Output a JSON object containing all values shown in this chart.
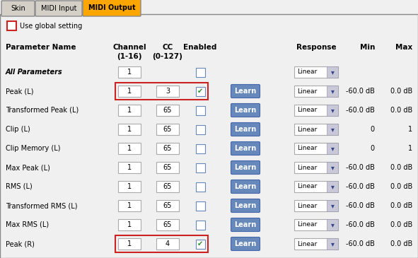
{
  "bg_color": "#f0f0f0",
  "tab_labels": [
    "Skin",
    "MIDI Input",
    "MIDI Output"
  ],
  "active_tab": 2,
  "active_tab_color": "#ffa500",
  "inactive_tab_color": "#d4d0c8",
  "use_global_setting_text": "Use global setting",
  "headers": [
    "Parameter Name",
    "Channel\n(1-16)",
    "CC\n(0-127)",
    "Enabled",
    "Response",
    "Min",
    "Max"
  ],
  "rows": [
    {
      "name": "All Parameters",
      "channel": "1",
      "cc": "",
      "enabled": false,
      "learn": false,
      "response": "Linear",
      "min_val": "",
      "max_val": "",
      "bold": true,
      "italic": true,
      "highlight": false
    },
    {
      "name": "Peak (L)",
      "channel": "1",
      "cc": "3",
      "enabled": true,
      "learn": true,
      "response": "Linear",
      "min_val": "-60.0 dB",
      "max_val": "0.0 dB",
      "bold": false,
      "italic": false,
      "highlight": true
    },
    {
      "name": "Transformed Peak (L)",
      "channel": "1",
      "cc": "65",
      "enabled": false,
      "learn": true,
      "response": "Linear",
      "min_val": "-60.0 dB",
      "max_val": "0.0 dB",
      "bold": false,
      "italic": false,
      "highlight": false
    },
    {
      "name": "Clip (L)",
      "channel": "1",
      "cc": "65",
      "enabled": false,
      "learn": true,
      "response": "Linear",
      "min_val": "0",
      "max_val": "1",
      "bold": false,
      "italic": false,
      "highlight": false
    },
    {
      "name": "Clip Memory (L)",
      "channel": "1",
      "cc": "65",
      "enabled": false,
      "learn": true,
      "response": "Linear",
      "min_val": "0",
      "max_val": "1",
      "bold": false,
      "italic": false,
      "highlight": false
    },
    {
      "name": "Max Peak (L)",
      "channel": "1",
      "cc": "65",
      "enabled": false,
      "learn": true,
      "response": "Linear",
      "min_val": "-60.0 dB",
      "max_val": "0.0 dB",
      "bold": false,
      "italic": false,
      "highlight": false
    },
    {
      "name": "RMS (L)",
      "channel": "1",
      "cc": "65",
      "enabled": false,
      "learn": true,
      "response": "Linear",
      "min_val": "-60.0 dB",
      "max_val": "0.0 dB",
      "bold": false,
      "italic": false,
      "highlight": false
    },
    {
      "name": "Transformed RMS (L)",
      "channel": "1",
      "cc": "65",
      "enabled": false,
      "learn": true,
      "response": "Linear",
      "min_val": "-60.0 dB",
      "max_val": "0.0 dB",
      "bold": false,
      "italic": false,
      "highlight": false
    },
    {
      "name": "Max RMS (L)",
      "channel": "1",
      "cc": "65",
      "enabled": false,
      "learn": true,
      "response": "Linear",
      "min_val": "-60.0 dB",
      "max_val": "0.0 dB",
      "bold": false,
      "italic": false,
      "highlight": false
    },
    {
      "name": "Peak (R)",
      "channel": "1",
      "cc": "4",
      "enabled": true,
      "learn": true,
      "response": "Linear",
      "min_val": "-60.0 dB",
      "max_val": "0.0 dB",
      "bold": false,
      "italic": false,
      "highlight": true
    }
  ],
  "check_color": "#229922",
  "learn_btn_face": "#6688bb",
  "learn_btn_edge": "#4466aa",
  "red_border": "#cc2222",
  "text_size": 7.0,
  "header_text_size": 7.5
}
